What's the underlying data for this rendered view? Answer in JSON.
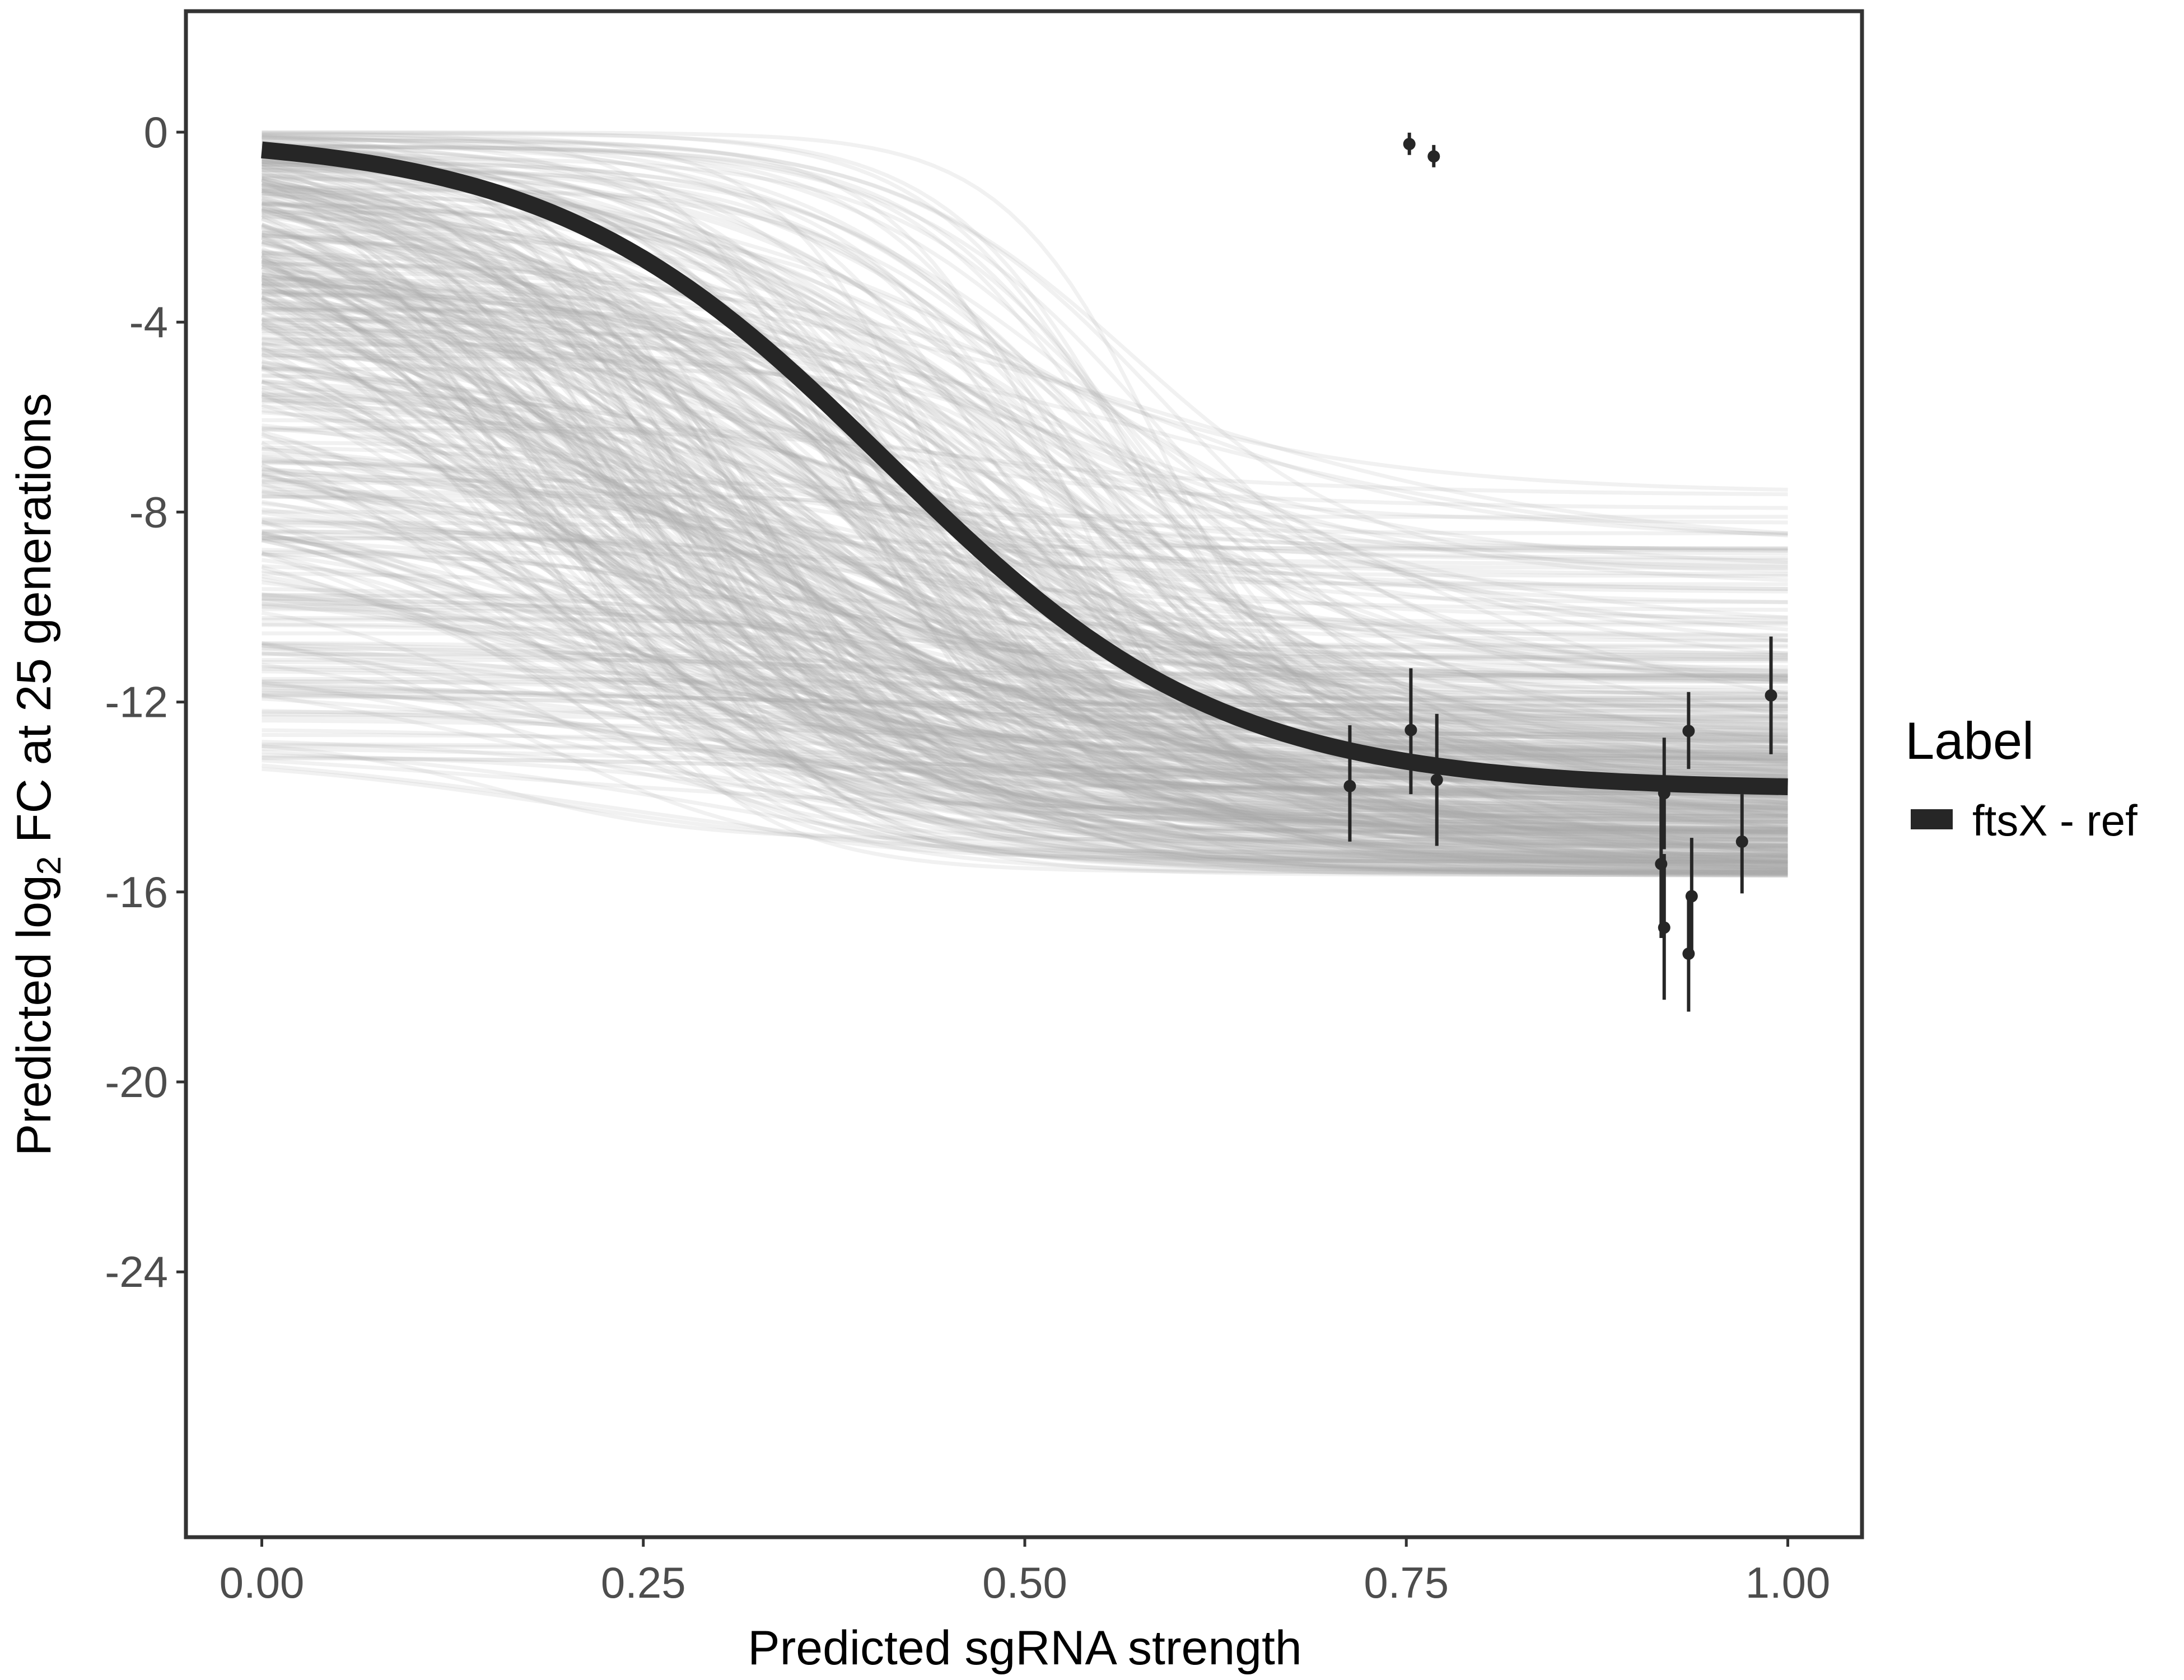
{
  "chart_data": {
    "type": "line",
    "title": "",
    "xlabel": "Predicted sgRNA strength",
    "ylabel_prefix": "Predicted  log",
    "ylabel_sub": "2",
    "ylabel_suffix": " FC at 25 generations",
    "xlim": [
      -0.05,
      1.05
    ],
    "ylim": [
      -29.1,
      2.5
    ],
    "x_ticks": [
      0,
      0.25,
      0.5,
      0.75,
      1
    ],
    "x_tick_labels": [
      "0.00",
      "0.25",
      "0.50",
      "0.75",
      "1.00"
    ],
    "y_ticks": [
      0,
      -4,
      -8,
      -12,
      -16,
      -20,
      -24
    ],
    "y_tick_labels": [
      "0",
      "-4",
      "-8",
      "-12",
      "-16",
      "-20",
      "-24"
    ],
    "grid": false,
    "legend": {
      "title": "Label",
      "placement": "right",
      "entries": [
        {
          "label": "ftsX - ref",
          "color": "#262626"
        }
      ]
    },
    "fit_curve": {
      "name": "ftsX - ref",
      "form": "logistic",
      "upper": -0.05,
      "lower": -13.85,
      "midpoint": 0.41,
      "scale": 0.11,
      "color": "#262626"
    },
    "posterior_draws": {
      "count": 450,
      "color": "#a9a9a9",
      "upper_range": [
        -13.2,
        0
      ],
      "lower_range": [
        -18.7,
        -6.6
      ],
      "midpoint_range": [
        0.15,
        0.6
      ],
      "scale_range": [
        0.05,
        0.16
      ]
    },
    "points": [
      {
        "x": 0.752,
        "y": -0.25,
        "ymin": -0.48,
        "ymax": -0.01
      },
      {
        "x": 0.768,
        "y": -0.51,
        "ymin": -0.74,
        "ymax": -0.27
      },
      {
        "x": 0.713,
        "y": -13.77,
        "ymin": -14.94,
        "ymax": -12.49
      },
      {
        "x": 0.753,
        "y": -12.59,
        "ymin": -13.94,
        "ymax": -11.29
      },
      {
        "x": 0.77,
        "y": -13.64,
        "ymin": -15.03,
        "ymax": -12.25
      },
      {
        "x": 0.919,
        "y": -13.92,
        "ymin": -15.1,
        "ymax": -12.75
      },
      {
        "x": 0.917,
        "y": -15.41,
        "ymin": -16.97,
        "ymax": -13.9
      },
      {
        "x": 0.919,
        "y": -16.75,
        "ymin": -18.27,
        "ymax": -15.2
      },
      {
        "x": 0.935,
        "y": -12.61,
        "ymin": -13.41,
        "ymax": -11.79
      },
      {
        "x": 0.937,
        "y": -16.09,
        "ymin": -17.3,
        "ymax": -14.86
      },
      {
        "x": 0.935,
        "y": -17.3,
        "ymin": -18.52,
        "ymax": -16.08
      },
      {
        "x": 0.97,
        "y": -14.94,
        "ymin": -16.03,
        "ymax": -13.94
      },
      {
        "x": 0.989,
        "y": -11.86,
        "ymin": -13.1,
        "ymax": -10.62
      }
    ]
  }
}
